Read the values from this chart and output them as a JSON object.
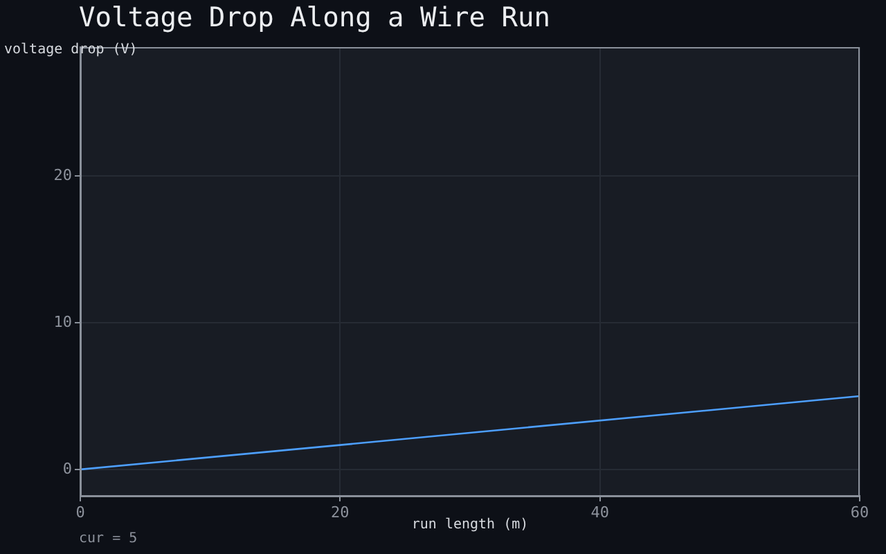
{
  "chart_data": {
    "type": "line",
    "title": "Voltage Drop Along a Wire Run",
    "xlabel": "run length (m)",
    "ylabel": "voltage drop (V)",
    "annotations": [
      "cur = 5"
    ],
    "x": [
      0,
      60
    ],
    "series": [
      {
        "color": "#4d9fff",
        "values": [
          0,
          5
        ]
      }
    ],
    "xlim": [
      0,
      60
    ],
    "xticks": [
      0,
      20,
      40,
      60
    ],
    "ylim": [
      -1.8,
      28.8
    ],
    "yticks": [
      0,
      10,
      20
    ],
    "grid": true
  }
}
